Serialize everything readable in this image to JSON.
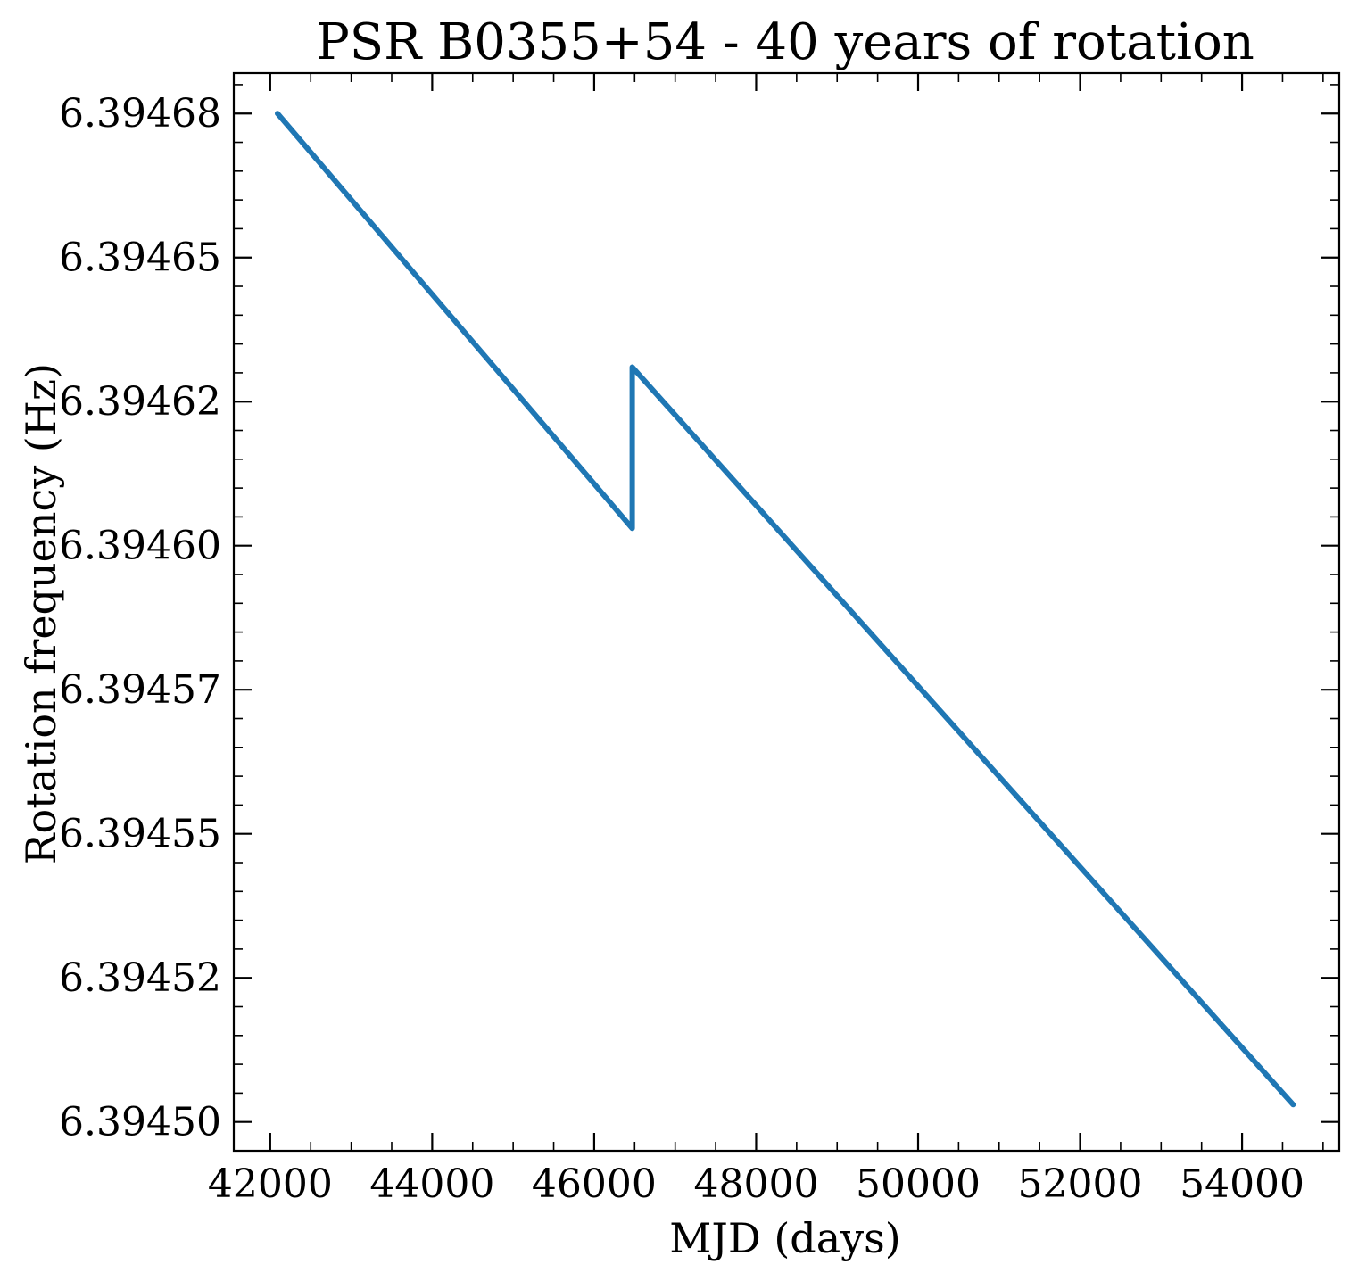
{
  "chart_data": {
    "type": "line",
    "title": "PSR B0355+54 - 40 years of rotation",
    "xlabel": "MJD (days)",
    "ylabel": "Rotation frequency (Hz)",
    "xlim": [
      41550,
      55200
    ],
    "ylim": [
      6.394495,
      6.394682
    ],
    "x_ticks": [
      42000,
      44000,
      46000,
      48000,
      50000,
      52000,
      54000
    ],
    "x_tick_labels": [
      "42000",
      "44000",
      "46000",
      "48000",
      "50000",
      "52000",
      "54000"
    ],
    "x_minor_step": 500,
    "y_ticks": [
      6.3945,
      6.394525,
      6.39455,
      6.394575,
      6.3946,
      6.394625,
      6.39465,
      6.394675
    ],
    "y_tick_labels": [
      "6.39450",
      "6.39452",
      "6.39455",
      "6.39457",
      "6.39460",
      "6.39462",
      "6.39465",
      "6.39468"
    ],
    "y_minor_step": 5e-06,
    "ticks_direction": "in",
    "ticks_on_all_sides": true,
    "grid": false,
    "series": [
      {
        "color": "#1f77b4",
        "x": [
          42090,
          46470,
          46470,
          54630
        ],
        "y": [
          6.394675,
          6.394603,
          6.394631,
          6.394503
        ]
      }
    ]
  }
}
